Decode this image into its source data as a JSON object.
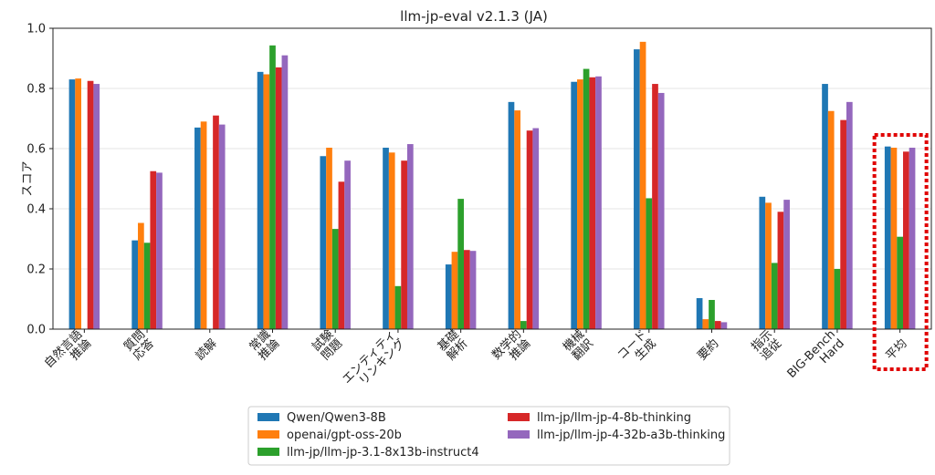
{
  "chart_data": {
    "type": "bar",
    "title": "llm-jp-eval v2.1.3 (JA)",
    "xlabel": "",
    "ylabel": "スコア",
    "ylim": [
      0,
      1.0
    ],
    "yticks": [
      "0.0",
      "0.2",
      "0.4",
      "0.6",
      "0.8",
      "1.0"
    ],
    "grid": true,
    "categories": [
      [
        "自然言語",
        "推論"
      ],
      [
        "質問",
        "応答"
      ],
      [
        "読解"
      ],
      [
        "常識",
        "推論"
      ],
      [
        "試験",
        "問題"
      ],
      [
        "エンティティ",
        "リンキング"
      ],
      [
        "基礎",
        "解析"
      ],
      [
        "数学的",
        "推論"
      ],
      [
        "機械",
        "翻訳"
      ],
      [
        "コード",
        "生成"
      ],
      [
        "要約"
      ],
      [
        "指示",
        "追従"
      ],
      [
        "BIG-Bench",
        "Hard"
      ],
      [
        "平均"
      ]
    ],
    "highlighted_category_index": 13,
    "highlight_color": "#e00000",
    "series": [
      {
        "name": "Qwen/Qwen3-8B",
        "color": "#1f77b4",
        "values": [
          0.83,
          0.295,
          0.67,
          0.855,
          0.575,
          0.603,
          0.215,
          0.755,
          0.822,
          0.93,
          0.103,
          0.44,
          0.815,
          0.607
        ]
      },
      {
        "name": "openai/gpt-oss-20b",
        "color": "#ff7f0e",
        "values": [
          0.833,
          0.353,
          0.69,
          0.847,
          0.603,
          0.587,
          0.257,
          0.727,
          0.83,
          0.955,
          0.033,
          0.42,
          0.725,
          0.603
        ]
      },
      {
        "name": "llm-jp/llm-jp-3.1-8x13b-instruct4",
        "color": "#2ca02c",
        "values": [
          0.0,
          0.287,
          0.0,
          0.943,
          0.333,
          0.143,
          0.433,
          0.027,
          0.865,
          0.435,
          0.097,
          0.22,
          0.2,
          0.307
        ]
      },
      {
        "name": "llm-jp/llm-jp-4-8b-thinking",
        "color": "#d62728",
        "values": [
          0.825,
          0.525,
          0.71,
          0.87,
          0.49,
          0.56,
          0.263,
          0.66,
          0.837,
          0.815,
          0.027,
          0.39,
          0.695,
          0.59
        ]
      },
      {
        "name": "llm-jp/llm-jp-4-32b-a3b-thinking",
        "color": "#9467bd",
        "values": [
          0.815,
          0.52,
          0.68,
          0.91,
          0.56,
          0.615,
          0.26,
          0.668,
          0.84,
          0.785,
          0.023,
          0.43,
          0.755,
          0.603
        ]
      }
    ],
    "legend": {
      "location": "bottom-center",
      "columns": [
        [
          "Qwen/Qwen3-8B",
          "openai/gpt-oss-20b",
          "llm-jp/llm-jp-3.1-8x13b-instruct4"
        ],
        [
          "llm-jp/llm-jp-4-8b-thinking",
          "llm-jp/llm-jp-4-32b-a3b-thinking"
        ]
      ]
    }
  }
}
